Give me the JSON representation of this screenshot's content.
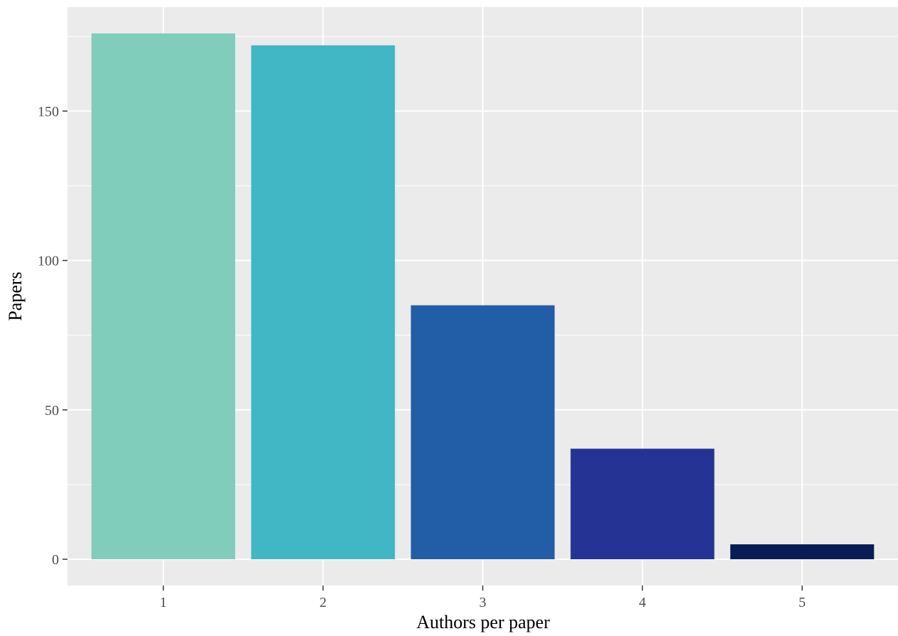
{
  "chart_data": {
    "type": "bar",
    "title": "",
    "xlabel": "Authors per paper",
    "ylabel": "Papers",
    "categories": [
      "1",
      "2",
      "3",
      "4",
      "5"
    ],
    "values": [
      176,
      172,
      85,
      37,
      5
    ],
    "bar_colors": [
      "#80cdbb",
      "#41b6c4",
      "#225ea8",
      "#253494",
      "#081d58"
    ],
    "yticks": [
      0,
      50,
      100,
      150
    ],
    "ylim": [
      -8.8,
      184.8
    ],
    "grid": true,
    "legend": "none",
    "panel_background": "#ebebeb",
    "grid_color": "#ffffff"
  }
}
